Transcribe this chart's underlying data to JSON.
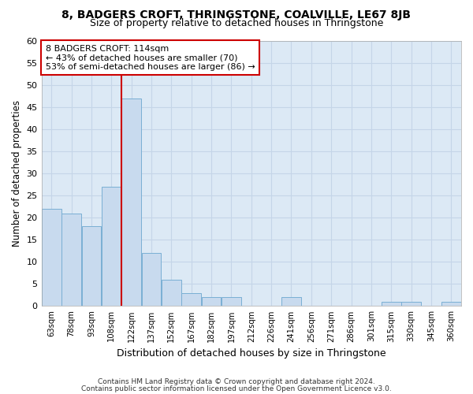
{
  "title1": "8, BADGERS CROFT, THRINGSTONE, COALVILLE, LE67 8JB",
  "title2": "Size of property relative to detached houses in Thringstone",
  "xlabel": "Distribution of detached houses by size in Thringstone",
  "ylabel": "Number of detached properties",
  "categories": [
    "63sqm",
    "78sqm",
    "93sqm",
    "108sqm",
    "122sqm",
    "137sqm",
    "152sqm",
    "167sqm",
    "182sqm",
    "197sqm",
    "212sqm",
    "226sqm",
    "241sqm",
    "256sqm",
    "271sqm",
    "286sqm",
    "301sqm",
    "315sqm",
    "330sqm",
    "345sqm",
    "360sqm"
  ],
  "values": [
    22,
    21,
    18,
    27,
    47,
    12,
    6,
    3,
    2,
    2,
    0,
    0,
    2,
    0,
    0,
    0,
    0,
    1,
    1,
    0,
    1
  ],
  "bar_color": "#c8daee",
  "bar_edge_color": "#7aafd4",
  "property_line_x": 3.5,
  "annotation_text": "8 BADGERS CROFT: 114sqm\n← 43% of detached houses are smaller (70)\n53% of semi-detached houses are larger (86) →",
  "annotation_box_color": "#ffffff",
  "annotation_box_edge": "#cc0000",
  "vline_color": "#cc0000",
  "grid_color": "#c5d5e8",
  "plot_bg_color": "#dce9f5",
  "fig_bg_color": "#ffffff",
  "ylim": [
    0,
    60
  ],
  "yticks": [
    0,
    5,
    10,
    15,
    20,
    25,
    30,
    35,
    40,
    45,
    50,
    55,
    60
  ],
  "footer1": "Contains HM Land Registry data © Crown copyright and database right 2024.",
  "footer2": "Contains public sector information licensed under the Open Government Licence v3.0."
}
